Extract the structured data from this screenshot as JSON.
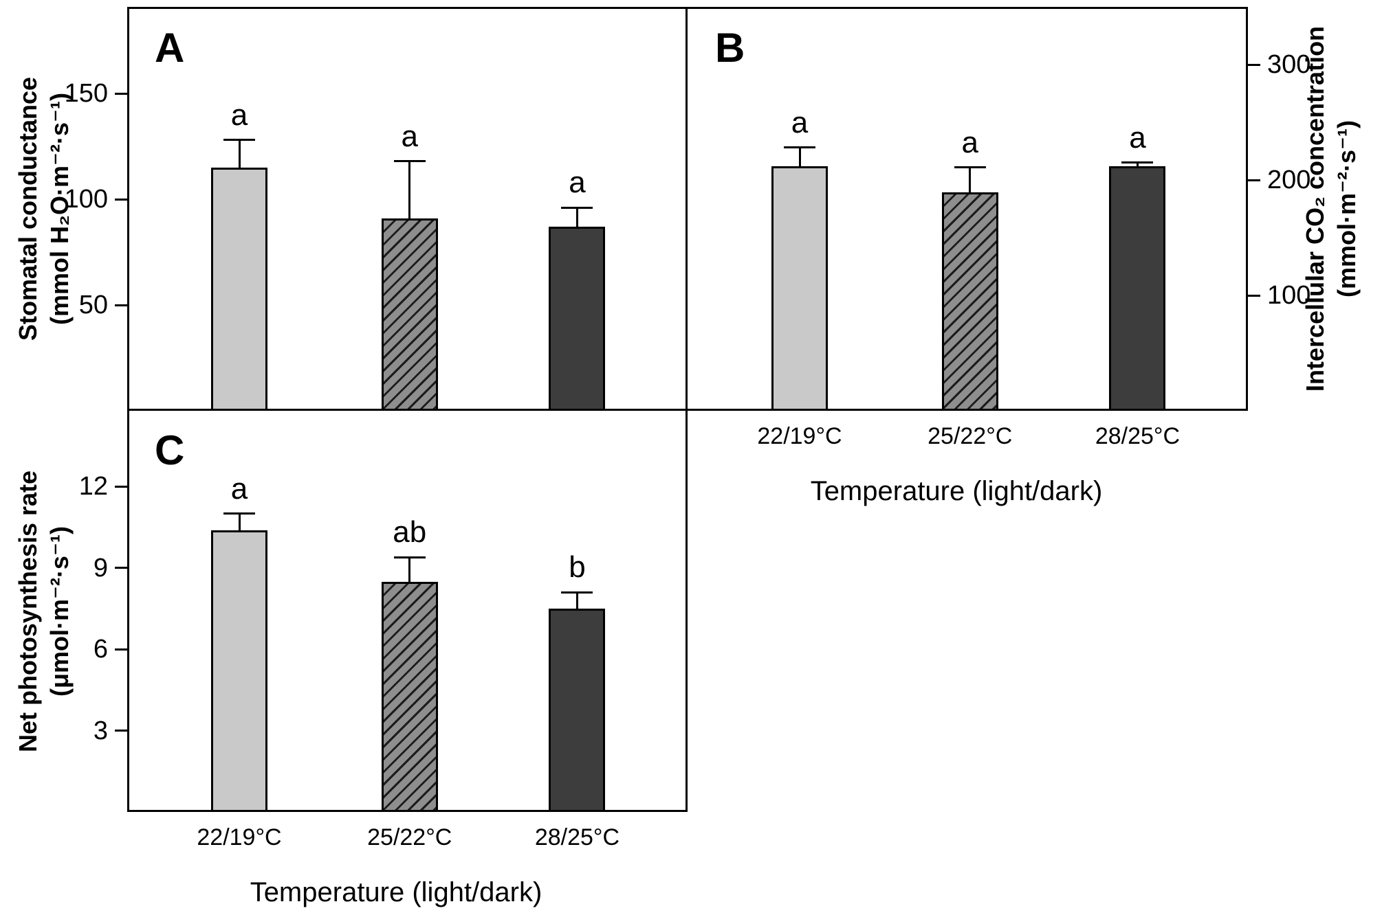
{
  "figure": {
    "background": "#ffffff",
    "colors": {
      "bar_light": "#c9c9c9",
      "bar_hatch_base": "#8e8e8e",
      "bar_hatch_stripe": "#1c1c1c",
      "bar_dark": "#3d3d3d",
      "axis": "#000000"
    }
  },
  "chart_data": [
    {
      "panel_letter": "A",
      "type": "bar",
      "ylabel_lines": [
        "Stomatal conductance",
        "(mmol H₂O·m⁻²·s⁻¹)"
      ],
      "axis_side": "left",
      "yticks": [
        50,
        100,
        150
      ],
      "ylim": [
        0,
        191
      ],
      "grid": false,
      "categories": [
        "22/19°C",
        "25/22°C",
        "28/25°C"
      ],
      "show_x_labels": false,
      "bars": [
        {
          "category": "22/19°C",
          "style": "light",
          "value": 115,
          "error_top": 128,
          "sig_letter": "a"
        },
        {
          "category": "25/22°C",
          "style": "hatch",
          "value": 91,
          "error_top": 118,
          "sig_letter": "a"
        },
        {
          "category": "28/25°C",
          "style": "dark",
          "value": 87,
          "error_top": 96,
          "sig_letter": "a"
        }
      ]
    },
    {
      "panel_letter": "B",
      "type": "bar",
      "ylabel_lines": [
        "Intercellular CO₂ concentration",
        "(mmol·m⁻²·s⁻¹)"
      ],
      "axis_side": "right",
      "yticks": [
        100,
        200,
        300
      ],
      "ylim": [
        0,
        350
      ],
      "grid": false,
      "categories": [
        "22/19°C",
        "25/22°C",
        "28/25°C"
      ],
      "show_x_labels": true,
      "x_axis_title": "Temperature (light/dark)",
      "bars": [
        {
          "category": "22/19°C",
          "style": "light",
          "value": 212,
          "error_top": 228,
          "sig_letter": "a"
        },
        {
          "category": "25/22°C",
          "style": "hatch",
          "value": 189,
          "error_top": 211,
          "sig_letter": "a"
        },
        {
          "category": "28/25°C",
          "style": "dark",
          "value": 212,
          "error_top": 215,
          "sig_letter": "a"
        }
      ]
    },
    {
      "panel_letter": "C",
      "type": "bar",
      "ylabel_lines": [
        "Net photosynthesis rate",
        "(μmol·m⁻²·s⁻¹)"
      ],
      "axis_side": "left",
      "yticks": [
        3,
        6,
        9,
        12
      ],
      "ylim": [
        0,
        14.8
      ],
      "grid": false,
      "categories": [
        "22/19°C",
        "25/22°C",
        "28/25°C"
      ],
      "show_x_labels": true,
      "x_axis_title": "Temperature (light/dark)",
      "bars": [
        {
          "category": "22/19°C",
          "style": "light",
          "value": 10.4,
          "error_top": 11.0,
          "sig_letter": "a"
        },
        {
          "category": "25/22°C",
          "style": "hatch",
          "value": 8.5,
          "error_top": 9.4,
          "sig_letter": "ab"
        },
        {
          "category": "28/25°C",
          "style": "dark",
          "value": 7.5,
          "error_top": 8.1,
          "sig_letter": "b"
        }
      ]
    }
  ]
}
